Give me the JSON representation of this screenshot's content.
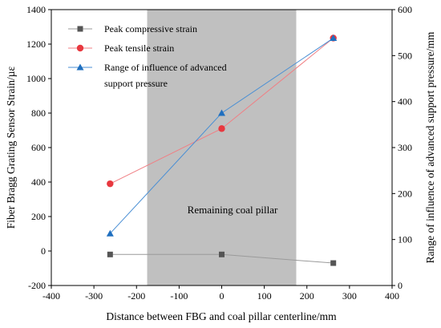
{
  "chart_data": {
    "type": "line",
    "xlabel": "Distance between FBG and coal pillar centerline/mm",
    "ylabel_left": "Fiber Bragg Grating Sensor Strain/µε",
    "ylabel_right": "Range of influence of advanced support pressure/mm",
    "xlim": [
      -400,
      400
    ],
    "ylim_left": [
      -200,
      1400
    ],
    "ylim_right": [
      0,
      600
    ],
    "x_ticks": [
      -400,
      -300,
      -200,
      -100,
      0,
      100,
      200,
      300,
      400
    ],
    "y_ticks_left": [
      -200,
      0,
      200,
      400,
      600,
      800,
      1000,
      1200,
      1400
    ],
    "y_ticks_right": [
      0,
      100,
      200,
      300,
      400,
      500,
      600
    ],
    "shaded_region": {
      "x_range": [
        -175,
        175
      ],
      "color": "#c0c0c0",
      "label": "Remaining coal pillar"
    },
    "legend_position": "top-left",
    "series": [
      {
        "name": "Peak compressive strain",
        "axis": "left",
        "marker": "square",
        "color": "#555555",
        "line_color": "#9a9a9a",
        "x": [
          -262,
          0,
          262
        ],
        "y": [
          -20,
          -20,
          -70
        ]
      },
      {
        "name": "Peak tensile strain",
        "axis": "left",
        "marker": "circle",
        "color": "#e8383f",
        "line_color": "#f07f84",
        "x": [
          -262,
          0,
          262
        ],
        "y": [
          390,
          710,
          1235
        ]
      },
      {
        "name": "Range of influence of advanced",
        "name_line2": "support pressure",
        "axis": "right",
        "marker": "triangle",
        "color": "#1f6fbf",
        "line_color": "#4a8fd4",
        "x": [
          -262,
          0,
          262
        ],
        "y": [
          113,
          375,
          538
        ]
      }
    ]
  }
}
